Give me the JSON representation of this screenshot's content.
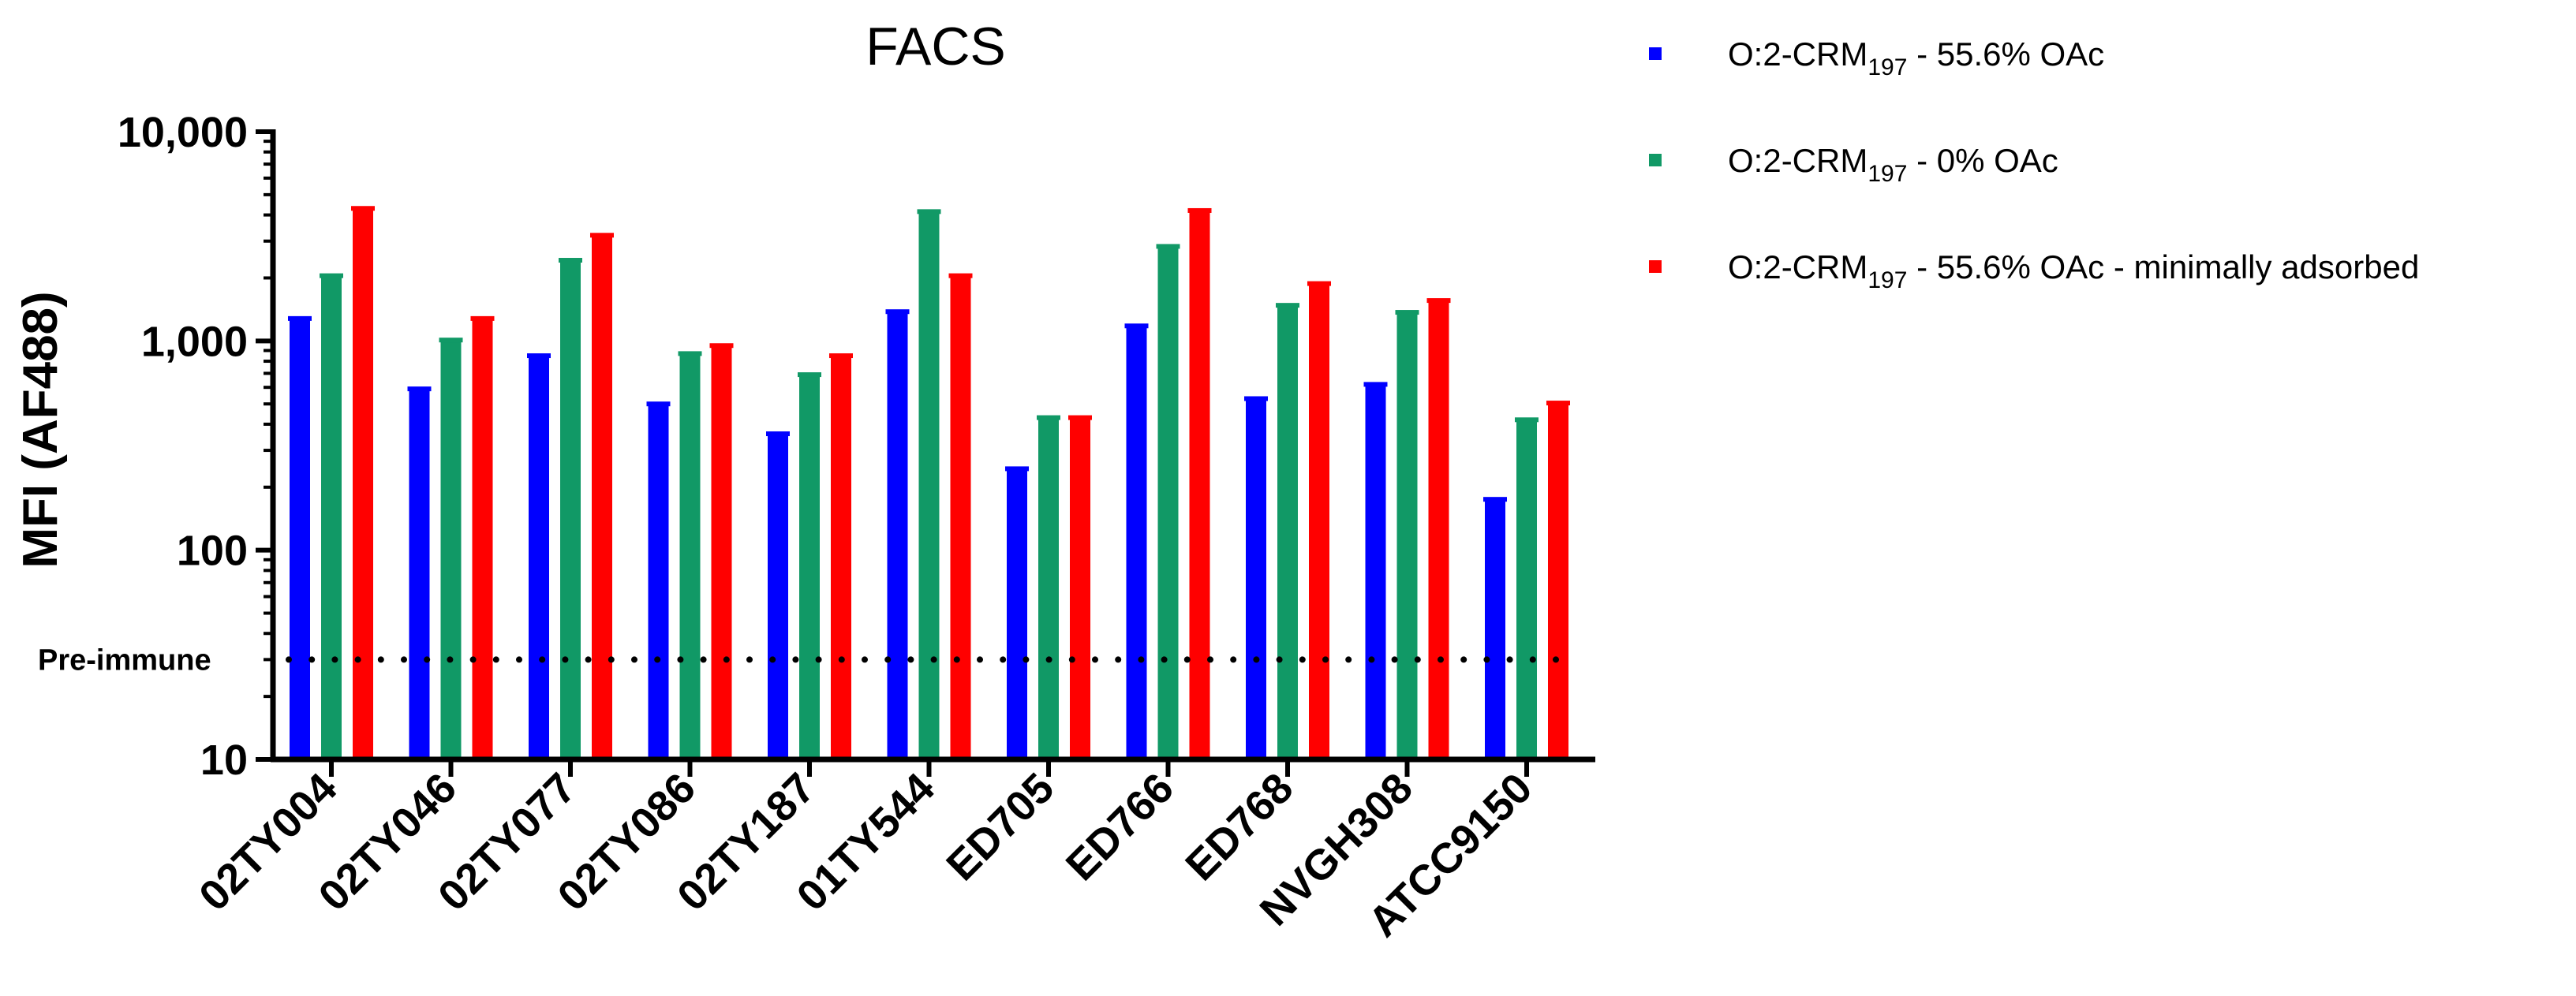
{
  "chart_data": {
    "type": "bar",
    "title": "FACS",
    "ylabel": "MFI (AF488)",
    "xlabel": "",
    "yscale": "log",
    "ylim": [
      10,
      10000
    ],
    "yticks": [
      10,
      100,
      1000,
      10000
    ],
    "ytick_labels": [
      "10",
      "100",
      "1,000",
      "10,000"
    ],
    "categories": [
      "02TY004",
      "02TY046",
      "02TY077",
      "02TY086",
      "02TY187",
      "01TY544",
      "ED705",
      "ED766",
      "ED768",
      "NVGH308",
      "ATCC9150"
    ],
    "series": [
      {
        "name_parts": [
          "O:2-CRM",
          "197",
          " - 55.6% OAc"
        ],
        "color": "#0000ff",
        "values": [
          1280,
          590,
          850,
          500,
          360,
          1380,
          245,
          1180,
          530,
          620,
          175
        ]
      },
      {
        "name_parts": [
          "O:2-CRM",
          "197",
          " - 0% OAc"
        ],
        "color": "#119966",
        "values": [
          2050,
          1010,
          2430,
          870,
          690,
          4150,
          430,
          2830,
          1480,
          1370,
          420
        ]
      },
      {
        "name_parts": [
          "O:2-CRM",
          "197",
          " -   55.6% OAc -   minimally adsorbed"
        ],
        "color": "#ff0000",
        "values": [
          4300,
          1280,
          3200,
          950,
          850,
          2050,
          430,
          4200,
          1880,
          1560,
          505
        ]
      }
    ],
    "reference_line": {
      "label": "Pre-immune",
      "value": 30,
      "style": "dotted"
    },
    "legend": {
      "position": "top-right"
    },
    "grid": false
  }
}
